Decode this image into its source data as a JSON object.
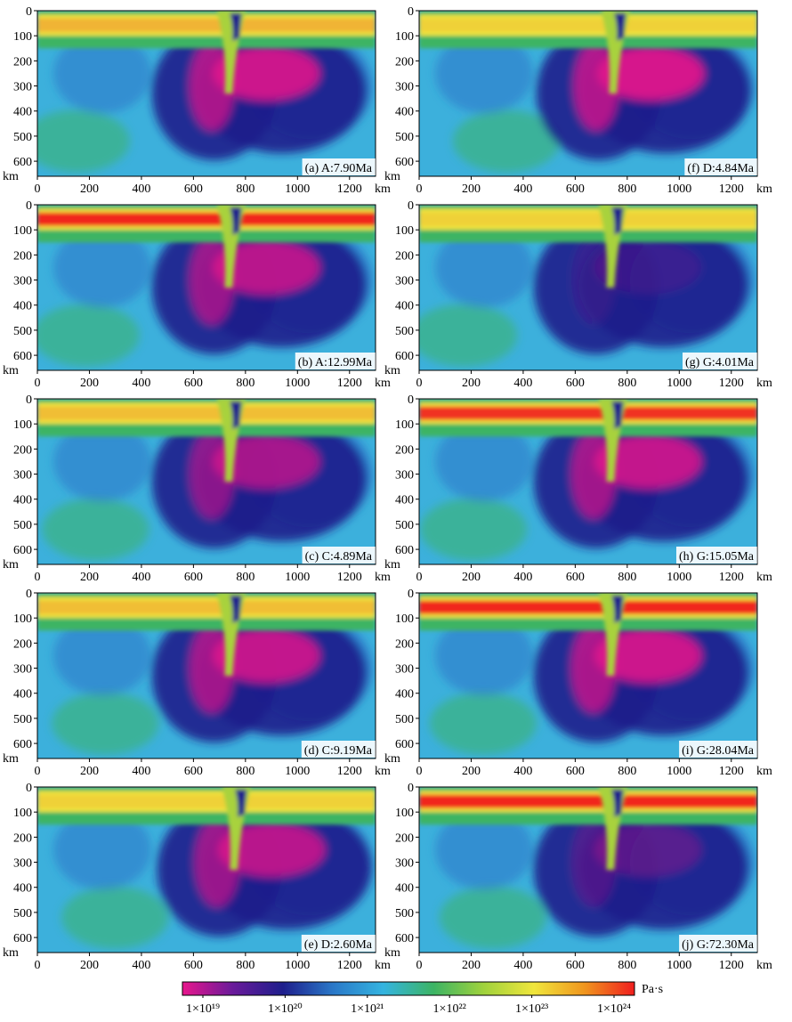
{
  "axis_unit": "km",
  "x_ticks": [
    "0",
    "200",
    "400",
    "600",
    "800",
    "1000",
    "1200"
  ],
  "y_ticks": [
    "0",
    "100",
    "200",
    "300",
    "400",
    "500",
    "600"
  ],
  "colorbar": {
    "unit": "Pa·s",
    "labels": [
      "1×10¹⁹",
      "1×10²⁰",
      "1×10²¹",
      "1×10²²",
      "1×10²³",
      "1×10²⁴"
    ],
    "stops": [
      "#e8168c",
      "#6a1a9a",
      "#1e1e8c",
      "#2a78c8",
      "#34b4e0",
      "#3cb464",
      "#a0d23c",
      "#f0e63c",
      "#f0961e",
      "#f01e1e"
    ]
  },
  "chart_data": [
    {
      "type": "heatmap",
      "label": "(a) A:7.90Ma",
      "xlim": [
        0,
        1300
      ],
      "ylim": [
        660,
        0
      ],
      "trench_km": 760
    },
    {
      "type": "heatmap",
      "label": "(b) A:12.99Ma",
      "xlim": [
        0,
        1300
      ],
      "ylim": [
        660,
        0
      ],
      "trench_km": 760
    },
    {
      "type": "heatmap",
      "label": "(c) C:4.89Ma",
      "xlim": [
        0,
        1300
      ],
      "ylim": [
        660,
        0
      ],
      "trench_km": 760
    },
    {
      "type": "heatmap",
      "label": "(d) C:9.19Ma",
      "xlim": [
        0,
        1300
      ],
      "ylim": [
        660,
        0
      ],
      "trench_km": 760
    },
    {
      "type": "heatmap",
      "label": "(e) D:2.60Ma",
      "xlim": [
        0,
        1300
      ],
      "ylim": [
        660,
        0
      ],
      "trench_km": 780
    },
    {
      "type": "heatmap",
      "label": "(f) D:4.84Ma",
      "xlim": [
        0,
        1300
      ],
      "ylim": [
        660,
        0
      ],
      "trench_km": 770
    },
    {
      "type": "heatmap",
      "label": "(g) G:4.01Ma",
      "xlim": [
        0,
        1300
      ],
      "ylim": [
        660,
        0
      ],
      "trench_km": 760
    },
    {
      "type": "heatmap",
      "label": "(h) G:15.05Ma",
      "xlim": [
        0,
        1300
      ],
      "ylim": [
        660,
        0
      ],
      "trench_km": 760
    },
    {
      "type": "heatmap",
      "label": "(i) G:28.04Ma",
      "xlim": [
        0,
        1300
      ],
      "ylim": [
        660,
        0
      ],
      "trench_km": 760
    },
    {
      "type": "heatmap",
      "label": "(j) G:72.30Ma",
      "xlim": [
        0,
        1300
      ],
      "ylim": [
        660,
        0
      ],
      "trench_km": 760
    }
  ]
}
